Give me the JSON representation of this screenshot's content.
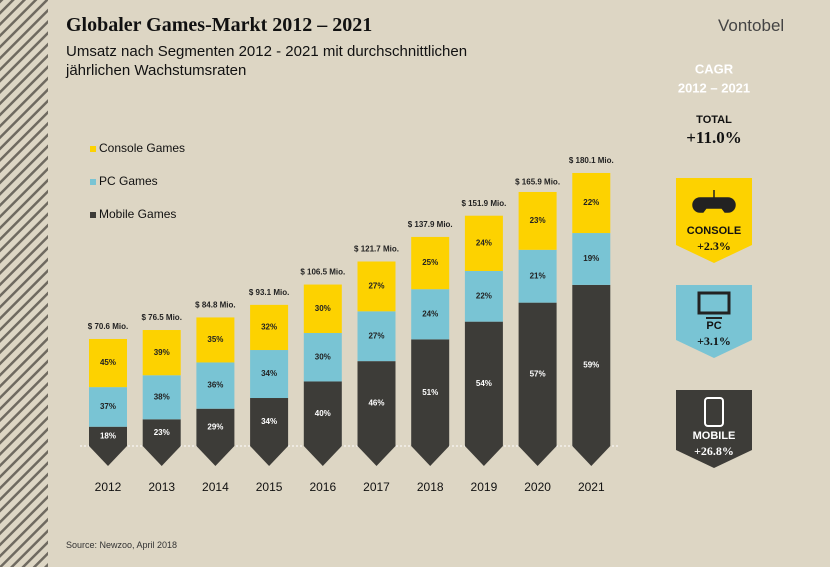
{
  "header": {
    "title": "Globaler Games-Markt 2012 – 2021",
    "subtitle": "Umsatz nach Segmenten 2012 - 2021 mit durchschnittlichen jährlichen Wachstumsraten",
    "logo": "Vontobel"
  },
  "chart_data": {
    "type": "bar",
    "categories": [
      "2012",
      "2013",
      "2014",
      "2015",
      "2016",
      "2017",
      "2018",
      "2019",
      "2020",
      "2021"
    ],
    "values": [
      70.6,
      76.5,
      84.8,
      93.1,
      106.5,
      121.7,
      137.9,
      151.9,
      165.9,
      180.1
    ],
    "value_labels": [
      "$ 70.6 Mio.",
      "$ 76.5 Mio.",
      "$ 84.8 Mio.",
      "$ 93.1 Mio.",
      "$ 106.5 Mio.",
      "$ 121.7 Mio.",
      "$ 137.9 Mio.",
      "$ 151.9 Mio.",
      "$ 165.9 Mio.",
      "$ 180.1 Mio."
    ],
    "series": [
      {
        "name": "Console Games",
        "color": "#fdd200",
        "values": [
          45,
          39,
          35,
          32,
          30,
          27,
          25,
          24,
          23,
          22
        ],
        "value_labels": [
          "45%",
          "39%",
          "35%",
          "32%",
          "30%",
          "27%",
          "25%",
          "24%",
          "23%",
          "22%"
        ]
      },
      {
        "name": "PC Games",
        "color": "#79c4d4",
        "values": [
          37,
          38,
          36,
          34,
          30,
          27,
          24,
          22,
          21,
          19
        ],
        "value_labels": [
          "37%",
          "38%",
          "36%",
          "34%",
          "30%",
          "27%",
          "24%",
          "22%",
          "21%",
          "19%"
        ]
      },
      {
        "name": "Mobile Games",
        "color": "#3d3c38",
        "values": [
          18,
          23,
          29,
          34,
          40,
          46,
          51,
          54,
          57,
          59
        ],
        "value_labels": [
          "18%",
          "23%",
          "29%",
          "34%",
          "40%",
          "46%",
          "51%",
          "54%",
          "57%",
          "59%"
        ]
      }
    ]
  },
  "cagr": {
    "title": "CAGR",
    "period": "2012 – 2021",
    "total": {
      "label": "TOTAL",
      "value": "+11.0%"
    },
    "items": [
      {
        "label": "CONSOLE",
        "value": "+2.3%"
      },
      {
        "label": "PC",
        "value": "+3.1%"
      },
      {
        "label": "MOBILE",
        "value": "+26.8%"
      }
    ]
  },
  "source": "Source: Newzoo, April 2018"
}
